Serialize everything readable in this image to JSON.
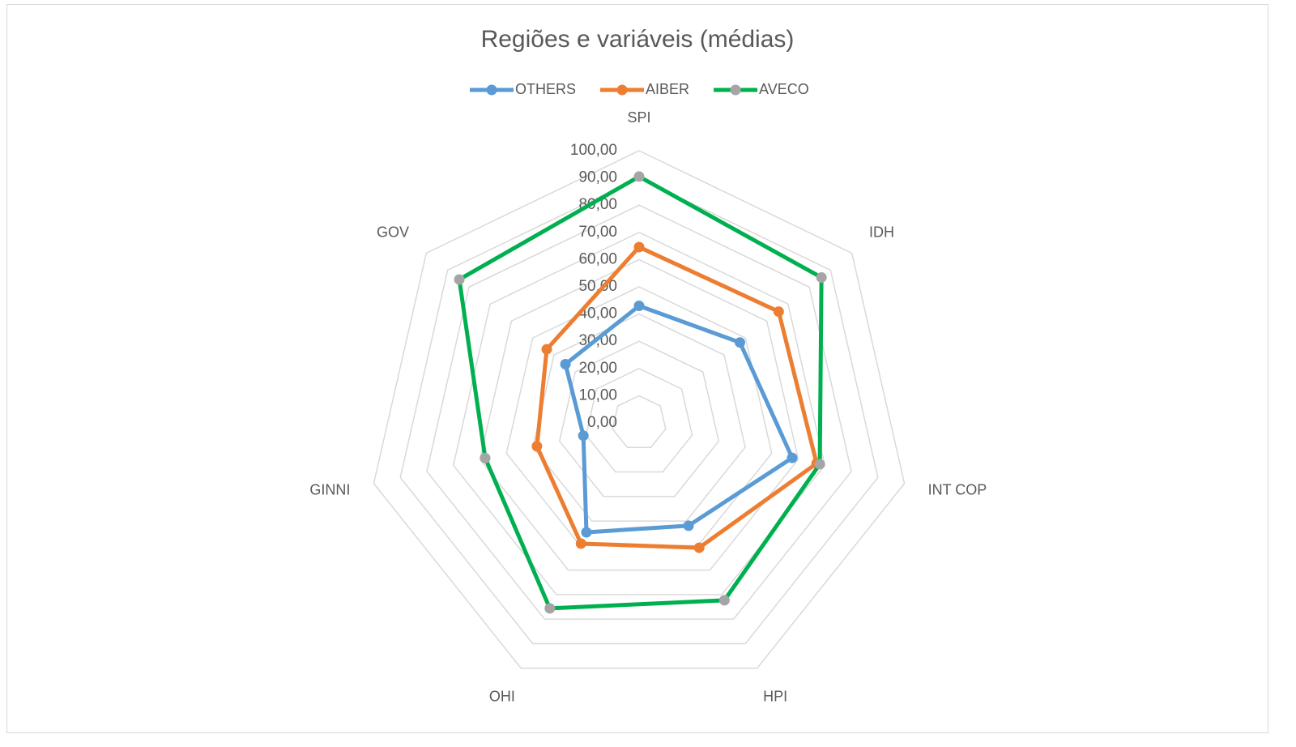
{
  "chart_data": {
    "type": "radar",
    "title": "Regiões e variáveis  (médias)",
    "categories": [
      "SPI",
      "IDH",
      "INT COP",
      "HPI",
      "OHI",
      "GINNI",
      "GOV"
    ],
    "series": [
      {
        "name": "OTHERS",
        "color": "#5b9bd5",
        "marker_color": "#5b9bd5",
        "values": [
          43,
          47.4,
          57.7,
          41.9,
          44.6,
          21,
          34.6
        ]
      },
      {
        "name": "AIBER",
        "color": "#ed7d31",
        "marker_color": "#ed7d31",
        "values": [
          64.6,
          65.6,
          66.9,
          50.9,
          49.2,
          38.5,
          43.4
        ]
      },
      {
        "name": "AVECO",
        "color": "#00b050",
        "marker_color": "#a5a5a5",
        "values": [
          90.5,
          85.7,
          68.1,
          72.3,
          75.6,
          58,
          84.5
        ]
      }
    ],
    "rlim": [
      0,
      100
    ],
    "rticks": [
      {
        "value": 0,
        "label": "0,00"
      },
      {
        "value": 10,
        "label": "10,00"
      },
      {
        "value": 20,
        "label": "20,00"
      },
      {
        "value": 30,
        "label": "30,00"
      },
      {
        "value": 40,
        "label": "40,00"
      },
      {
        "value": 50,
        "label": "50,00"
      },
      {
        "value": 60,
        "label": "60,00"
      },
      {
        "value": 70,
        "label": "70,00"
      },
      {
        "value": 80,
        "label": "80,00"
      },
      {
        "value": 90,
        "label": "90,00"
      },
      {
        "value": 100,
        "label": "100,00"
      }
    ],
    "grid": true,
    "legend": "top"
  }
}
